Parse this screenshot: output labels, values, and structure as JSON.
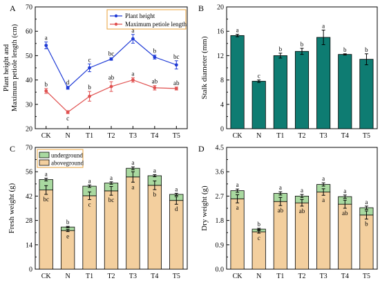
{
  "colors": {
    "blue": "#1f3bd6",
    "red": "#e0504f",
    "teal": "#0e7c72",
    "above": "#f3cf9e",
    "under": "#a9d9a0",
    "legend_border": "#e8a23a"
  },
  "chart_data": [
    {
      "panel": "A",
      "type": "line",
      "categories": [
        "CK",
        "N",
        "T1",
        "T2",
        "T3",
        "T4",
        "T5"
      ],
      "ylabel": "Plant height and Maximum petiole length (cm)",
      "ylim": [
        20,
        70
      ],
      "yticks": [
        20,
        30,
        40,
        50,
        60,
        70
      ],
      "legend_position": "top-right",
      "series": [
        {
          "name": "Plant height",
          "color": "#1f3bd6",
          "values": [
            54.2,
            36.8,
            45.0,
            48.6,
            56.9,
            49.4,
            46.2
          ],
          "errors": [
            1.4,
            0.6,
            1.6,
            0.5,
            1.8,
            0.8,
            1.7
          ],
          "letters": [
            "a",
            "d",
            "c",
            "bc",
            "a",
            "b",
            "bc"
          ]
        },
        {
          "name": "Maximum petiole length",
          "color": "#e0504f",
          "values": [
            35.5,
            26.8,
            33.3,
            37.3,
            40.0,
            36.8,
            36.5
          ],
          "errors": [
            1.0,
            0.6,
            2.0,
            2.0,
            0.9,
            0.9,
            0.6
          ],
          "letters": [
            "b",
            "c",
            "b",
            "ab",
            "a",
            "ab",
            "ab"
          ]
        }
      ]
    },
    {
      "panel": "B",
      "type": "bar",
      "categories": [
        "CK",
        "N",
        "T1",
        "T2",
        "T3",
        "T4",
        "T5"
      ],
      "ylabel": "Stalk diameter (mm)",
      "ylim": [
        0,
        20
      ],
      "yticks": [
        0,
        4,
        8,
        12,
        16,
        20
      ],
      "values": [
        15.3,
        7.8,
        12.0,
        12.7,
        15.0,
        12.2,
        11.4
      ],
      "errors": [
        0.2,
        0.2,
        0.4,
        0.5,
        1.2,
        0.1,
        0.9
      ],
      "letters": [
        "a",
        "c",
        "b",
        "b",
        "a",
        "b",
        "b"
      ]
    },
    {
      "panel": "C",
      "type": "bar",
      "stacked": true,
      "categories": [
        "CK",
        "N",
        "T1",
        "T2",
        "T3",
        "T4",
        "T5"
      ],
      "ylabel": "Fresh weight (g)",
      "ylim": [
        0,
        70
      ],
      "yticks": [
        0,
        14,
        28,
        42,
        56,
        70
      ],
      "legend_position": "top-left",
      "series": [
        {
          "name": "aboveground",
          "color": "#f3cf9e",
          "values": [
            45.5,
            22.2,
            42.2,
            45.0,
            53.0,
            48.2,
            39.5
          ],
          "errors": [
            2.5,
            0.6,
            2.2,
            2.5,
            3.0,
            2.5,
            2.2
          ],
          "letters": [
            "bc",
            "e",
            "c",
            "bc",
            "a",
            "b",
            "d"
          ]
        },
        {
          "name": "underground",
          "color": "#a9d9a0",
          "values": [
            6.0,
            2.0,
            5.5,
            4.5,
            5.0,
            5.5,
            3.5
          ],
          "errors": [
            0.8,
            0.4,
            0.7,
            0.7,
            0.8,
            0.6,
            0.6
          ],
          "letters": [
            "a",
            "b",
            "a",
            "a",
            "a",
            "a",
            "a"
          ]
        }
      ]
    },
    {
      "panel": "D",
      "type": "bar",
      "stacked": true,
      "categories": [
        "CK",
        "N",
        "T1",
        "T2",
        "T3",
        "T4",
        "T5"
      ],
      "ylabel": "Dry weight (g)",
      "ylim": [
        0,
        4.5
      ],
      "yticks": [
        0.0,
        0.9,
        1.8,
        2.7,
        3.6,
        4.5
      ],
      "series": [
        {
          "name": "aboveground",
          "color": "#f3cf9e",
          "values": [
            2.6,
            1.38,
            2.5,
            2.45,
            2.85,
            2.4,
            2.0
          ],
          "errors": [
            0.15,
            0.05,
            0.15,
            0.12,
            0.12,
            0.15,
            0.15
          ],
          "letters": [
            "a",
            "c",
            "ab",
            "ab",
            "a",
            "ab",
            "b"
          ]
        },
        {
          "name": "underground",
          "color": "#a9d9a0",
          "values": [
            0.3,
            0.1,
            0.3,
            0.25,
            0.28,
            0.28,
            0.27
          ],
          "errors": [
            0.06,
            0.03,
            0.06,
            0.06,
            0.06,
            0.06,
            0.06
          ],
          "letters": [
            "a",
            "b",
            "a",
            "a",
            "a",
            "a",
            "a"
          ]
        }
      ]
    }
  ]
}
